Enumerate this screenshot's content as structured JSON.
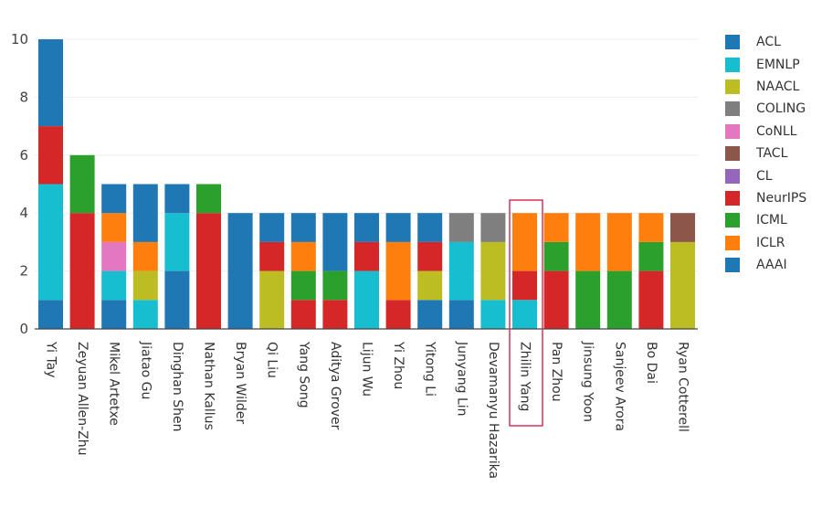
{
  "chart_data": {
    "type": "bar",
    "stacked": true,
    "ylim": [
      0,
      10
    ],
    "yticks": [
      0,
      2,
      4,
      6,
      8,
      10
    ],
    "highlight_category": "Zhilin Yang",
    "categories": [
      "Yi Tay",
      "Zeyuan Allen-Zhu",
      "Mikel Artetxe",
      "Jiatao Gu",
      "Dinghan Shen",
      "Nathan Kallus",
      "Bryan Wilder",
      "Qi Liu",
      "Yang Song",
      "Aditya Grover",
      "Lijun Wu",
      "Yi Zhou",
      "Yitong Li",
      "Junyang Lin",
      "Devamanyu Hazarika",
      "Zhilin Yang",
      "Pan Zhou",
      "Jinsung Yoon",
      "Sanjeev Arora",
      "Bo Dai",
      "Ryan Cotterell"
    ],
    "series": [
      {
        "name": "ACL",
        "color": "#1f77b4",
        "values": [
          1,
          0,
          1,
          0,
          2,
          0,
          0,
          0,
          0,
          0,
          0,
          0,
          1,
          1,
          0,
          0,
          0,
          0,
          0,
          0,
          0
        ]
      },
      {
        "name": "EMNLP",
        "color": "#17becf",
        "values": [
          4,
          0,
          1,
          1,
          2,
          0,
          0,
          0,
          0,
          0,
          2,
          0,
          0,
          2,
          1,
          1,
          0,
          0,
          0,
          0,
          0
        ]
      },
      {
        "name": "NAACL",
        "color": "#bcbd22",
        "values": [
          0,
          0,
          0,
          1,
          0,
          0,
          0,
          2,
          0,
          0,
          0,
          0,
          1,
          0,
          2,
          0,
          0,
          0,
          0,
          0,
          3
        ]
      },
      {
        "name": "COLING",
        "color": "#7f7f7f",
        "values": [
          0,
          0,
          0,
          0,
          0,
          0,
          0,
          0,
          0,
          0,
          0,
          0,
          0,
          1,
          1,
          0,
          0,
          0,
          0,
          0,
          0
        ]
      },
      {
        "name": "CoNLL",
        "color": "#e377c2",
        "values": [
          0,
          0,
          1,
          0,
          0,
          0,
          0,
          0,
          0,
          0,
          0,
          0,
          0,
          0,
          0,
          0,
          0,
          0,
          0,
          0,
          0
        ]
      },
      {
        "name": "TACL",
        "color": "#8c564b",
        "values": [
          0,
          0,
          0,
          0,
          0,
          0,
          0,
          0,
          0,
          0,
          0,
          0,
          0,
          0,
          0,
          0,
          0,
          0,
          0,
          0,
          1
        ]
      },
      {
        "name": "CL",
        "color": "#9467bd",
        "values": [
          0,
          0,
          0,
          0,
          0,
          0,
          0,
          0,
          0,
          0,
          0,
          0,
          0,
          0,
          0,
          0,
          0,
          0,
          0,
          0,
          0
        ]
      },
      {
        "name": "NeurIPS",
        "color": "#d62728",
        "values": [
          2,
          4,
          0,
          0,
          0,
          4,
          0,
          1,
          1,
          1,
          1,
          1,
          1,
          0,
          0,
          1,
          2,
          0,
          0,
          2,
          0
        ]
      },
      {
        "name": "ICML",
        "color": "#2ca02c",
        "values": [
          0,
          2,
          0,
          0,
          0,
          1,
          0,
          0,
          1,
          1,
          0,
          0,
          0,
          0,
          0,
          0,
          1,
          2,
          2,
          1,
          0
        ]
      },
      {
        "name": "ICLR",
        "color": "#ff7f0e",
        "values": [
          0,
          0,
          1,
          1,
          0,
          0,
          0,
          0,
          1,
          0,
          0,
          2,
          0,
          0,
          0,
          2,
          1,
          2,
          2,
          1,
          0
        ]
      },
      {
        "name": "AAAI",
        "color": "#1f77b4",
        "values": [
          3,
          0,
          1,
          2,
          1,
          0,
          4,
          1,
          1,
          2,
          1,
          1,
          1,
          0,
          0,
          0,
          0,
          0,
          0,
          0,
          0
        ]
      }
    ]
  }
}
